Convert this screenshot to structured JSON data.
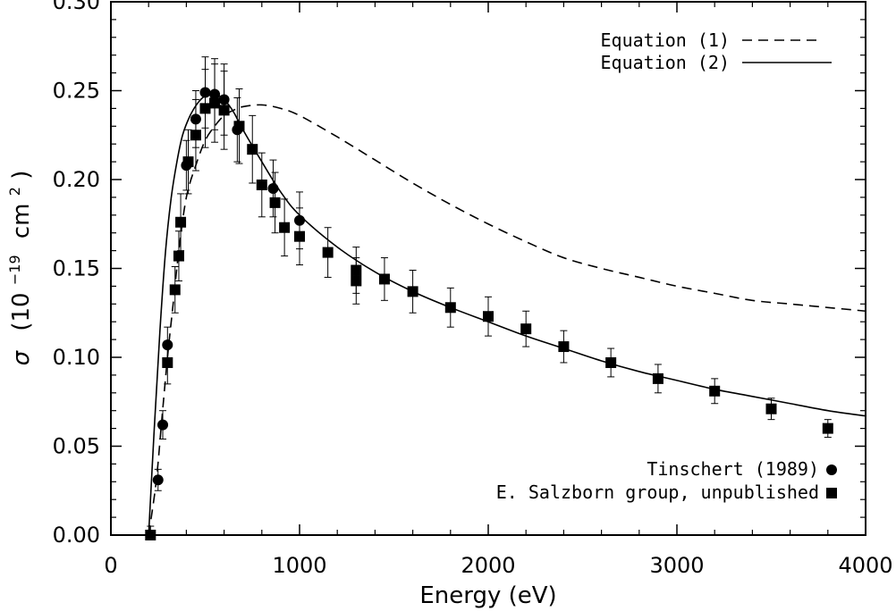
{
  "chart_data": {
    "type": "scatter",
    "title": "",
    "xlabel": "Energy (eV)",
    "ylabel": {
      "symbol": "σ",
      "open": "(10",
      "exp1": "−19",
      "unit": "cm",
      "exp2": "2",
      "close": ")"
    },
    "xlim": [
      0,
      4000
    ],
    "ylim": [
      0.0,
      0.3
    ],
    "xticks": [
      0,
      1000,
      2000,
      3000,
      4000
    ],
    "xtick_labels": [
      "0",
      "1000",
      "2000",
      "3000",
      "4000"
    ],
    "yticks": [
      0.0,
      0.05,
      0.1,
      0.15,
      0.2,
      0.25,
      0.3
    ],
    "ytick_labels": [
      "0.00",
      "0.05",
      "0.10",
      "0.15",
      "0.20",
      "0.25",
      "0.30"
    ],
    "grid": false,
    "curves": [
      {
        "name": "Equation (1)",
        "style": "dashed",
        "x": [
          200,
          240,
          270,
          300,
          330,
          360,
          400,
          450,
          500,
          550,
          600,
          650,
          700,
          800,
          900,
          1000,
          1200,
          1400,
          1600,
          1800,
          2000,
          2200,
          2400,
          2600,
          2800,
          3000,
          3200,
          3400,
          3600,
          3800,
          4000
        ],
        "y": [
          0.0,
          0.03,
          0.065,
          0.1,
          0.13,
          0.16,
          0.19,
          0.208,
          0.222,
          0.23,
          0.236,
          0.239,
          0.241,
          0.242,
          0.24,
          0.236,
          0.224,
          0.211,
          0.198,
          0.186,
          0.175,
          0.165,
          0.156,
          0.15,
          0.145,
          0.14,
          0.136,
          0.132,
          0.13,
          0.128,
          0.126
        ]
      },
      {
        "name": "Equation (2)",
        "style": "solid",
        "x": [
          200,
          230,
          260,
          290,
          320,
          350,
          380,
          420,
          460,
          500,
          550,
          600,
          650,
          700,
          800,
          900,
          1000,
          1200,
          1400,
          1600,
          1800,
          2000,
          2200,
          2400,
          2600,
          2800,
          3000,
          3200,
          3400,
          3600,
          3800,
          4000
        ],
        "y": [
          0.0,
          0.06,
          0.115,
          0.16,
          0.19,
          0.21,
          0.225,
          0.236,
          0.243,
          0.247,
          0.248,
          0.245,
          0.238,
          0.228,
          0.21,
          0.193,
          0.18,
          0.162,
          0.148,
          0.137,
          0.128,
          0.12,
          0.112,
          0.105,
          0.098,
          0.092,
          0.087,
          0.082,
          0.078,
          0.074,
          0.07,
          0.067
        ]
      }
    ],
    "series": [
      {
        "name": "Tinschert (1989)",
        "marker": "circle",
        "x": [
          250,
          275,
          300,
          400,
          450,
          500,
          550,
          600,
          670,
          860,
          1000
        ],
        "y": [
          0.031,
          0.062,
          0.107,
          0.208,
          0.234,
          0.249,
          0.248,
          0.245,
          0.228,
          0.195,
          0.177
        ],
        "err": [
          0.006,
          0.008,
          0.01,
          0.014,
          0.016,
          0.02,
          0.02,
          0.02,
          0.018,
          0.016,
          0.016
        ]
      },
      {
        "name": "E. Salzborn group, unpublished",
        "marker": "square",
        "x": [
          210,
          300,
          340,
          360,
          370,
          410,
          450,
          500,
          550,
          600,
          680,
          750,
          800,
          870,
          920,
          1000,
          1150,
          1300,
          1300,
          1450,
          1600,
          1800,
          2000,
          2200,
          2400,
          2650,
          2900,
          3200,
          3500,
          3800
        ],
        "y": [
          0.0,
          0.097,
          0.138,
          0.157,
          0.176,
          0.21,
          0.225,
          0.24,
          0.243,
          0.239,
          0.23,
          0.217,
          0.197,
          0.187,
          0.173,
          0.168,
          0.159,
          0.149,
          0.143,
          0.144,
          0.137,
          0.128,
          0.123,
          0.116,
          0.106,
          0.097,
          0.088,
          0.081,
          0.071,
          0.06
        ],
        "err": [
          0.005,
          0.012,
          0.013,
          0.014,
          0.016,
          0.018,
          0.02,
          0.022,
          0.022,
          0.022,
          0.021,
          0.019,
          0.018,
          0.017,
          0.016,
          0.016,
          0.014,
          0.013,
          0.013,
          0.012,
          0.012,
          0.011,
          0.011,
          0.01,
          0.009,
          0.008,
          0.008,
          0.007,
          0.006,
          0.005
        ]
      }
    ],
    "legend": {
      "top_right": [
        "Equation (1)",
        "Equation (2)"
      ],
      "bottom_right": [
        "Tinschert (1989)",
        "E. Salzborn group, unpublished"
      ]
    }
  }
}
